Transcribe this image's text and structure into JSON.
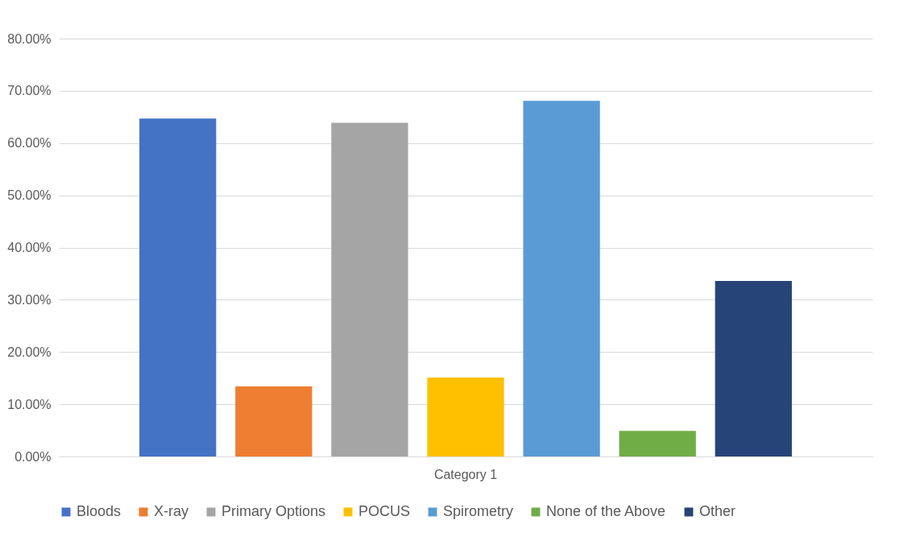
{
  "chart_data": {
    "type": "bar",
    "categories": [
      "Category 1"
    ],
    "series": [
      {
        "name": "Bloods",
        "color": "#4472c4",
        "values": [
          64.7
        ]
      },
      {
        "name": "X-ray",
        "color": "#ed7d31",
        "values": [
          13.4
        ]
      },
      {
        "name": "Primary Options",
        "color": "#a5a5a5",
        "values": [
          63.9
        ]
      },
      {
        "name": "POCUS",
        "color": "#ffc000",
        "values": [
          15.1
        ]
      },
      {
        "name": "Spirometry",
        "color": "#5b9bd5",
        "values": [
          68.1
        ]
      },
      {
        "name": "None of the Above",
        "color": "#70ad47",
        "values": [
          4.9
        ]
      },
      {
        "name": "Other",
        "color": "#264478",
        "values": [
          33.6
        ]
      }
    ],
    "ylim": [
      0,
      80
    ],
    "yticks": [
      {
        "value": 0,
        "label": "0.00%"
      },
      {
        "value": 10,
        "label": "10.00%"
      },
      {
        "value": 20,
        "label": "20.00%"
      },
      {
        "value": 30,
        "label": "30.00%"
      },
      {
        "value": 40,
        "label": "40.00%"
      },
      {
        "value": 50,
        "label": "50.00%"
      },
      {
        "value": 60,
        "label": "60.00%"
      },
      {
        "value": 70,
        "label": "70.00%"
      },
      {
        "value": 80,
        "label": "80.00%"
      }
    ],
    "grid": "y",
    "legend": "bottom"
  }
}
